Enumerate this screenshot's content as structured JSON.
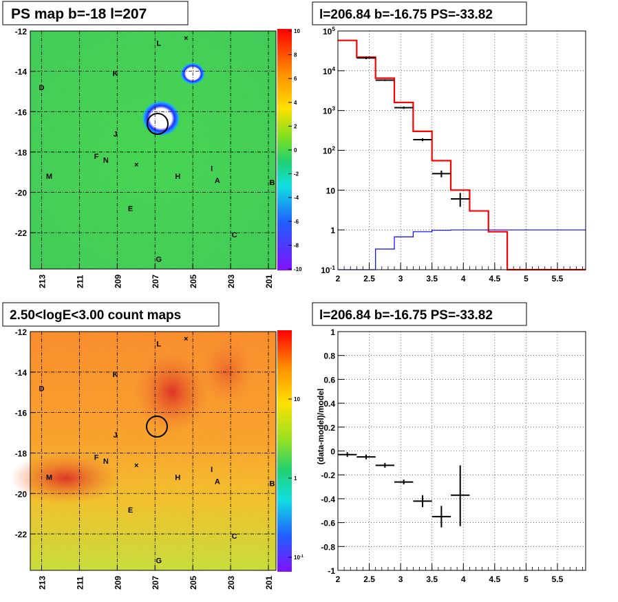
{
  "panels": {
    "ps_map": {
      "title": "PS map b=-18 l=207"
    },
    "count_map": {
      "title": "2.50<logE<3.00 count maps"
    },
    "spectrum": {
      "title": "l=206.84 b=-16.75 PS=-33.82"
    },
    "residual": {
      "title": "l=206.84 b=-16.75 PS=-33.82"
    }
  },
  "chart_data": [
    {
      "id": "ps_map",
      "type": "heatmap",
      "title": "PS map b=-18 l=207",
      "x_ticks": [
        "213",
        "211",
        "209",
        "207",
        "205",
        "203",
        "201"
      ],
      "y_ticks": [
        "-12",
        "-14",
        "-16",
        "-18",
        "-20",
        "-22"
      ],
      "xlim": [
        213.6,
        200.6
      ],
      "ylim": [
        -23.8,
        -12
      ],
      "z_ticks": [
        "10",
        "8",
        "6",
        "4",
        "2",
        "0",
        "-2",
        "-4",
        "-6",
        "-8",
        "-10"
      ],
      "zlim": [
        -10,
        10
      ],
      "colors": {
        "background": "#3fd24a",
        "source": "#ffffff",
        "halo": "#3030ff"
      },
      "source_markers": [
        {
          "l": 206.8,
          "b": -16.75,
          "type": "circle"
        },
        {
          "l": 205.0,
          "b": -14.4,
          "type": "blob"
        }
      ],
      "labels": [
        {
          "text": "L",
          "l": 206.8,
          "b": -12.6
        },
        {
          "text": "K",
          "l": 209.1,
          "b": -14.1
        },
        {
          "text": "D",
          "l": 213.0,
          "b": -14.8
        },
        {
          "text": "J",
          "l": 209.1,
          "b": -17.1
        },
        {
          "text": "F",
          "l": 210.1,
          "b": -18.2
        },
        {
          "text": "N",
          "l": 209.6,
          "b": -18.4
        },
        {
          "text": "M",
          "l": 212.6,
          "b": -19.2
        },
        {
          "text": "H",
          "l": 205.8,
          "b": -19.2
        },
        {
          "text": "I",
          "l": 204.0,
          "b": -18.8
        },
        {
          "text": "A",
          "l": 203.7,
          "b": -19.4
        },
        {
          "text": "B",
          "l": 200.8,
          "b": -19.5
        },
        {
          "text": "E",
          "l": 208.3,
          "b": -20.8
        },
        {
          "text": "C",
          "l": 202.8,
          "b": -22.1
        },
        {
          "text": "G",
          "l": 206.8,
          "b": -23.3
        }
      ]
    },
    {
      "id": "count_map",
      "type": "heatmap",
      "title": "2.50<logE<3.00 count maps",
      "x_ticks": [
        "213",
        "211",
        "209",
        "207",
        "205",
        "203",
        "201"
      ],
      "y_ticks": [
        "-12",
        "-14",
        "-16",
        "-18",
        "-20",
        "-22"
      ],
      "xlim": [
        213.6,
        200.6
      ],
      "ylim": [
        -23.8,
        -12
      ],
      "z_ticks": [
        "10",
        "1",
        "10^-1"
      ],
      "z_scale": "log",
      "colors": {
        "high": "#e83020",
        "mid": "#ff9a20",
        "low": "#c8e830"
      },
      "source_markers": [
        {
          "l": 206.8,
          "b": -16.75,
          "type": "circle"
        }
      ]
    },
    {
      "id": "spectrum",
      "type": "line",
      "title": "l=206.84 b=-16.75 PS=-33.82",
      "xlabel": "",
      "ylabel": "",
      "xlim": [
        2,
        5.95
      ],
      "ylim": [
        0.1,
        100000
      ],
      "yscale": "log",
      "x_ticks": [
        "2",
        "2.5",
        "3",
        "3.5",
        "4",
        "4.5",
        "5",
        "5.5"
      ],
      "y_ticks": [
        "10^-1",
        "1",
        "10",
        "10^2",
        "10^3",
        "10^4",
        "10^5"
      ],
      "grid": true,
      "series": [
        {
          "color": "#ff0000",
          "style": "step",
          "edges": [
            2.0,
            2.3,
            2.6,
            2.9,
            3.2,
            3.5,
            3.8,
            4.1,
            4.4,
            4.7,
            5.0,
            5.95
          ],
          "values": [
            58000,
            22000,
            6500,
            1600,
            300,
            55,
            10,
            3,
            0.9,
            0.1,
            0.1
          ]
        },
        {
          "color": "#0000ff",
          "style": "step",
          "edges": [
            2.0,
            2.6,
            2.9,
            3.2,
            3.5,
            3.8,
            4.1,
            4.4,
            4.7,
            5.0,
            5.95
          ],
          "values": [
            0.06,
            0.33,
            0.67,
            0.9,
            0.98,
            1.0,
            1.0,
            1.0,
            1.0,
            1.0
          ]
        },
        {
          "color": "#000000",
          "style": "errorbar",
          "points": [
            {
              "x": 2.45,
              "xerr": 0.15,
              "y": 21000,
              "ylo": 19500,
              "yhi": 22500
            },
            {
              "x": 2.75,
              "xerr": 0.15,
              "y": 5800,
              "ylo": 5500,
              "yhi": 6100
            },
            {
              "x": 3.05,
              "xerr": 0.15,
              "y": 1180,
              "ylo": 1100,
              "yhi": 1260
            },
            {
              "x": 3.35,
              "xerr": 0.15,
              "y": 185,
              "ylo": 170,
              "yhi": 200
            },
            {
              "x": 3.65,
              "xerr": 0.15,
              "y": 26,
              "ylo": 21,
              "yhi": 31
            },
            {
              "x": 3.95,
              "xerr": 0.15,
              "y": 6,
              "ylo": 3.8,
              "yhi": 8.5
            }
          ]
        }
      ]
    },
    {
      "id": "residual",
      "type": "scatter",
      "title": "l=206.84 b=-16.75 PS=-33.82",
      "xlabel": "",
      "ylabel": "(data-model)/model",
      "xlim": [
        2,
        5.95
      ],
      "ylim": [
        -1,
        1
      ],
      "x_ticks": [
        "2",
        "2.5",
        "3",
        "3.5",
        "4",
        "4.5",
        "5",
        "5.5"
      ],
      "y_ticks": [
        "1",
        "0.8",
        "0.6",
        "0.4",
        "0.2",
        "0",
        "-0.2",
        "-0.4",
        "-0.6",
        "-0.8",
        "-1"
      ],
      "grid": true,
      "series": [
        {
          "color": "#000000",
          "style": "errorbar",
          "points": [
            {
              "x": 2.15,
              "xerr": 0.15,
              "y": -0.03,
              "ylo": -0.05,
              "yhi": -0.01
            },
            {
              "x": 2.45,
              "xerr": 0.15,
              "y": -0.05,
              "ylo": -0.07,
              "yhi": -0.03
            },
            {
              "x": 2.75,
              "xerr": 0.15,
              "y": -0.12,
              "ylo": -0.14,
              "yhi": -0.1
            },
            {
              "x": 3.05,
              "xerr": 0.15,
              "y": -0.26,
              "ylo": -0.28,
              "yhi": -0.24
            },
            {
              "x": 3.35,
              "xerr": 0.15,
              "y": -0.42,
              "ylo": -0.47,
              "yhi": -0.37
            },
            {
              "x": 3.65,
              "xerr": 0.15,
              "y": -0.55,
              "ylo": -0.64,
              "yhi": -0.46
            },
            {
              "x": 3.95,
              "xerr": 0.15,
              "y": -0.37,
              "ylo": -0.63,
              "yhi": -0.12
            }
          ]
        }
      ]
    }
  ]
}
